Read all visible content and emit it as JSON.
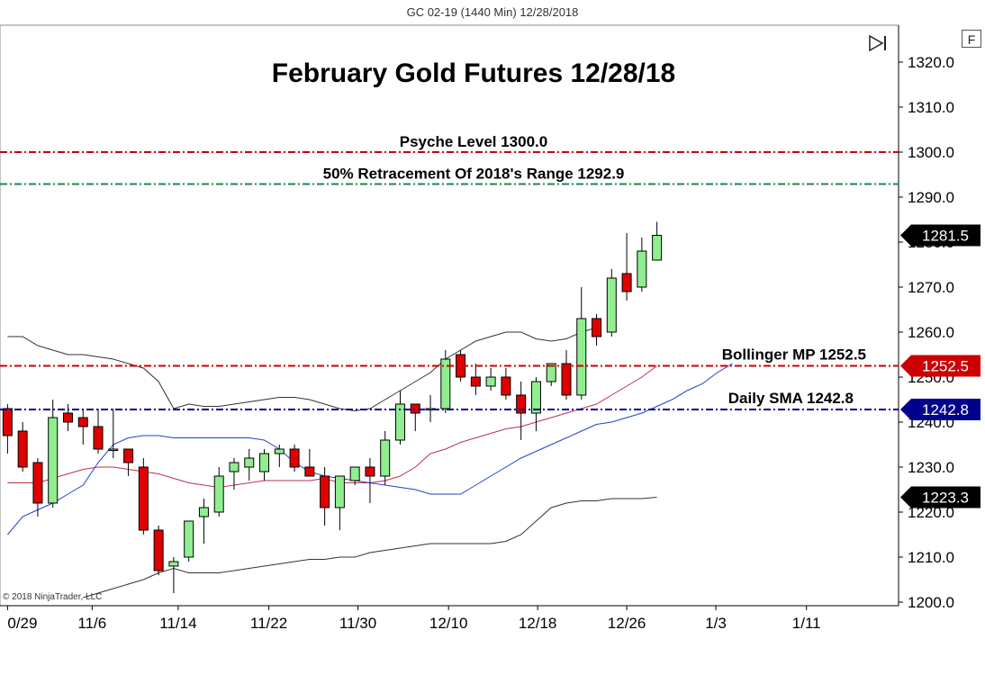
{
  "header": {
    "instrument_title": "GC 02-19 (1440 Min)  12/28/2018"
  },
  "controls": {
    "f_button": "F",
    "play_icon": "play-end-icon"
  },
  "copyright": "© 2018 NinjaTrader, LLC",
  "chart_data": {
    "type": "candlestick",
    "title": "February Gold Futures 12/28/18",
    "ylim": [
      1200,
      1320
    ],
    "yticks": [
      "1200.0",
      "1210.0",
      "1220.0",
      "1230.0",
      "1240.0",
      "1250.0",
      "1260.0",
      "1270.0",
      "1280.0",
      "1290.0",
      "1300.0",
      "1310.0",
      "1320.0"
    ],
    "xticks": [
      {
        "label": "0/29",
        "index": 0
      },
      {
        "label": "11/6",
        "index": 5.6
      },
      {
        "label": "11/14",
        "index": 11.3
      },
      {
        "label": "11/22",
        "index": 17.3
      },
      {
        "label": "11/30",
        "index": 23.2
      },
      {
        "label": "12/10",
        "index": 29.2
      },
      {
        "label": "12/18",
        "index": 35.1
      },
      {
        "label": "12/26",
        "index": 41.0
      },
      {
        "label": "1/3",
        "index": 46.9
      },
      {
        "label": "1/11",
        "index": 52.9
      }
    ],
    "x_range": [
      -0.5,
      59
    ],
    "candles": [
      {
        "o": 1243,
        "h": 1244,
        "l": 1233,
        "c": 1237
      },
      {
        "o": 1238,
        "h": 1240,
        "l": 1229,
        "c": 1230
      },
      {
        "o": 1231,
        "h": 1232,
        "l": 1219,
        "c": 1222
      },
      {
        "o": 1222,
        "h": 1245,
        "l": 1221,
        "c": 1241
      },
      {
        "o": 1242,
        "h": 1244,
        "l": 1238,
        "c": 1240
      },
      {
        "o": 1241,
        "h": 1243,
        "l": 1235,
        "c": 1239
      },
      {
        "o": 1239,
        "h": 1243,
        "l": 1233,
        "c": 1234
      },
      {
        "o": 1234,
        "h": 1243,
        "l": 1232,
        "c": 1234
      },
      {
        "o": 1234,
        "h": 1233,
        "l": 1228,
        "c": 1231
      },
      {
        "o": 1230,
        "h": 1232,
        "l": 1215,
        "c": 1216
      },
      {
        "o": 1216,
        "h": 1217,
        "l": 1206,
        "c": 1207
      },
      {
        "o": 1208,
        "h": 1210,
        "l": 1202,
        "c": 1209
      },
      {
        "o": 1210,
        "h": 1218,
        "l": 1209,
        "c": 1218
      },
      {
        "o": 1219,
        "h": 1223,
        "l": 1213,
        "c": 1221
      },
      {
        "o": 1220,
        "h": 1230,
        "l": 1219,
        "c": 1228
      },
      {
        "o": 1229,
        "h": 1232,
        "l": 1225,
        "c": 1231
      },
      {
        "o": 1230,
        "h": 1234,
        "l": 1227,
        "c": 1232
      },
      {
        "o": 1229,
        "h": 1234,
        "l": 1227,
        "c": 1233
      },
      {
        "o": 1233,
        "h": 1235,
        "l": 1230,
        "c": 1234
      },
      {
        "o": 1234,
        "h": 1235,
        "l": 1229,
        "c": 1230
      },
      {
        "o": 1230,
        "h": 1234,
        "l": 1229,
        "c": 1228
      },
      {
        "o": 1228,
        "h": 1230,
        "l": 1217,
        "c": 1221
      },
      {
        "o": 1221,
        "h": 1228,
        "l": 1216,
        "c": 1228
      },
      {
        "o": 1227,
        "h": 1230,
        "l": 1226,
        "c": 1230
      },
      {
        "o": 1230,
        "h": 1232,
        "l": 1222,
        "c": 1228
      },
      {
        "o": 1228,
        "h": 1238,
        "l": 1226,
        "c": 1236
      },
      {
        "o": 1236,
        "h": 1247,
        "l": 1235,
        "c": 1244
      },
      {
        "o": 1244,
        "h": 1244,
        "l": 1238,
        "c": 1242
      },
      {
        "o": 1243,
        "h": 1246,
        "l": 1240,
        "c": 1243
      },
      {
        "o": 1243,
        "h": 1256,
        "l": 1242,
        "c": 1254
      },
      {
        "o": 1255,
        "h": 1256,
        "l": 1249,
        "c": 1250
      },
      {
        "o": 1250,
        "h": 1253,
        "l": 1246,
        "c": 1248
      },
      {
        "o": 1248,
        "h": 1252,
        "l": 1247,
        "c": 1250
      },
      {
        "o": 1250,
        "h": 1252,
        "l": 1245,
        "c": 1246
      },
      {
        "o": 1246,
        "h": 1249,
        "l": 1236,
        "c": 1242
      },
      {
        "o": 1242,
        "h": 1250,
        "l": 1238,
        "c": 1249
      },
      {
        "o": 1249,
        "h": 1253,
        "l": 1248,
        "c": 1253
      },
      {
        "o": 1253,
        "h": 1256,
        "l": 1245,
        "c": 1246
      },
      {
        "o": 1246,
        "h": 1270,
        "l": 1245,
        "c": 1263
      },
      {
        "o": 1263,
        "h": 1264,
        "l": 1257,
        "c": 1259
      },
      {
        "o": 1260,
        "h": 1274,
        "l": 1259,
        "c": 1272
      },
      {
        "o": 1273,
        "h": 1282,
        "l": 1267,
        "c": 1269
      },
      {
        "o": 1270,
        "h": 1281,
        "l": 1269,
        "c": 1278
      },
      {
        "o": 1276,
        "h": 1284.5,
        "l": 1276,
        "c": 1281.5
      }
    ],
    "bollinger_upper": [
      [
        0,
        1259
      ],
      [
        1,
        1259
      ],
      [
        2,
        1257
      ],
      [
        3,
        1256
      ],
      [
        4,
        1255
      ],
      [
        5,
        1255
      ],
      [
        6,
        1254.5
      ],
      [
        7,
        1254
      ],
      [
        8,
        1253
      ],
      [
        9,
        1252
      ],
      [
        10,
        1249
      ],
      [
        11,
        1243
      ],
      [
        12,
        1244
      ],
      [
        13,
        1243.5
      ],
      [
        14,
        1243.5
      ],
      [
        15,
        1244
      ],
      [
        16,
        1244.5
      ],
      [
        17,
        1245
      ],
      [
        18,
        1245.5
      ],
      [
        19,
        1245.5
      ],
      [
        20,
        1245
      ],
      [
        21,
        1244
      ],
      [
        22,
        1243
      ],
      [
        23,
        1242.5
      ],
      [
        24,
        1243
      ],
      [
        25,
        1245
      ],
      [
        26,
        1247
      ],
      [
        27,
        1249
      ],
      [
        28,
        1251
      ],
      [
        29,
        1254
      ],
      [
        30,
        1256
      ],
      [
        31,
        1258
      ],
      [
        32,
        1259
      ],
      [
        33,
        1260
      ],
      [
        34,
        1260
      ],
      [
        35,
        1258.5
      ],
      [
        36,
        1258
      ],
      [
        37,
        1258.5
      ],
      [
        38,
        1260
      ],
      [
        39,
        1261
      ]
    ],
    "bollinger_middle": [
      [
        0,
        1226.5
      ],
      [
        1,
        1226.5
      ],
      [
        2,
        1226.5
      ],
      [
        3,
        1227.5
      ],
      [
        4,
        1228.5
      ],
      [
        5,
        1229.5
      ],
      [
        6,
        1230
      ],
      [
        7,
        1230
      ],
      [
        8,
        1229.5
      ],
      [
        9,
        1229
      ],
      [
        10,
        1228.5
      ],
      [
        11,
        1227.5
      ],
      [
        12,
        1226.5
      ],
      [
        13,
        1226
      ],
      [
        14,
        1225.5
      ],
      [
        15,
        1226
      ],
      [
        16,
        1226.5
      ],
      [
        17,
        1227
      ],
      [
        18,
        1227
      ],
      [
        19,
        1227
      ],
      [
        20,
        1227
      ],
      [
        21,
        1227.5
      ],
      [
        22,
        1226.5
      ],
      [
        23,
        1226.5
      ],
      [
        24,
        1226.5
      ],
      [
        25,
        1227
      ],
      [
        26,
        1228
      ],
      [
        27,
        1230
      ],
      [
        28,
        1233
      ],
      [
        29,
        1234
      ],
      [
        30,
        1235.5
      ],
      [
        31,
        1236.5
      ],
      [
        32,
        1237.5
      ],
      [
        33,
        1238.5
      ],
      [
        34,
        1239
      ],
      [
        35,
        1240
      ],
      [
        36,
        1241
      ],
      [
        37,
        1242
      ],
      [
        38,
        1243
      ],
      [
        39,
        1244
      ],
      [
        40,
        1246
      ],
      [
        41,
        1248
      ],
      [
        42,
        1250
      ],
      [
        43,
        1252.5
      ]
    ],
    "bollinger_lower": [
      [
        5,
        1201
      ],
      [
        7,
        1203
      ],
      [
        8,
        1204
      ],
      [
        9,
        1205
      ],
      [
        10,
        1206.5
      ],
      [
        11,
        1207.5
      ],
      [
        12,
        1206.5
      ],
      [
        14,
        1206.5
      ],
      [
        15,
        1207
      ],
      [
        16,
        1207.5
      ],
      [
        17,
        1208
      ],
      [
        18,
        1208.5
      ],
      [
        19,
        1209
      ],
      [
        20,
        1209.5
      ],
      [
        21,
        1209.5
      ],
      [
        22,
        1210
      ],
      [
        23,
        1210
      ],
      [
        24,
        1211
      ],
      [
        25,
        1211.5
      ],
      [
        26,
        1212
      ],
      [
        27,
        1212.5
      ],
      [
        28,
        1213
      ],
      [
        29,
        1213
      ],
      [
        30,
        1213
      ],
      [
        31,
        1213
      ],
      [
        32,
        1213
      ],
      [
        33,
        1213.5
      ],
      [
        34,
        1215
      ],
      [
        35,
        1218
      ],
      [
        36,
        1221
      ],
      [
        37,
        1222
      ],
      [
        38,
        1222.5
      ],
      [
        39,
        1222.5
      ],
      [
        40,
        1223
      ],
      [
        41,
        1223
      ],
      [
        42,
        1223
      ],
      [
        43,
        1223.3
      ]
    ],
    "daily_sma": [
      [
        0,
        1215
      ],
      [
        1,
        1219
      ],
      [
        2,
        1220.5
      ],
      [
        3,
        1222
      ],
      [
        4,
        1224
      ],
      [
        5,
        1226
      ],
      [
        6,
        1231
      ],
      [
        7,
        1235
      ],
      [
        8,
        1236.5
      ],
      [
        9,
        1237
      ],
      [
        10,
        1237
      ],
      [
        11,
        1236.5
      ],
      [
        12,
        1236.5
      ],
      [
        13,
        1236.5
      ],
      [
        14,
        1236.5
      ],
      [
        15,
        1236.5
      ],
      [
        16,
        1236.5
      ],
      [
        17,
        1236
      ],
      [
        18,
        1234
      ],
      [
        19,
        1231
      ],
      [
        20,
        1229
      ],
      [
        21,
        1228
      ],
      [
        22,
        1227.5
      ],
      [
        23,
        1227
      ],
      [
        24,
        1226.5
      ],
      [
        25,
        1226
      ],
      [
        26,
        1225.5
      ],
      [
        27,
        1225
      ],
      [
        28,
        1224
      ],
      [
        29,
        1224
      ],
      [
        30,
        1224
      ],
      [
        31,
        1226
      ],
      [
        32,
        1228
      ],
      [
        33,
        1230
      ],
      [
        34,
        1232
      ],
      [
        35,
        1233.5
      ],
      [
        36,
        1235
      ],
      [
        37,
        1236.5
      ],
      [
        38,
        1238
      ],
      [
        39,
        1239.5
      ],
      [
        40,
        1240
      ],
      [
        41,
        1241
      ],
      [
        42,
        1242
      ],
      [
        43,
        1243.5
      ],
      [
        44,
        1245
      ],
      [
        45,
        1247
      ],
      [
        46,
        1248.5
      ],
      [
        47,
        1251
      ],
      [
        48,
        1253
      ]
    ],
    "horizontal_lines": [
      {
        "label": "Psyche Level 1300.0",
        "value": 1300.0,
        "color": "#cc0000",
        "style": "dashdot"
      },
      {
        "label": "50% Retracement Of 2018's Range 1292.9",
        "value": 1292.9,
        "color": "#1a8a4a",
        "style": "dashdot"
      },
      {
        "label": "Bollinger MP 1252.5",
        "value": 1252.5,
        "color": "#cc0000",
        "style": "dashdot"
      },
      {
        "label": "Daily SMA 1242.8",
        "value": 1242.8,
        "color": "#00008b",
        "style": "dashdot"
      }
    ],
    "price_markers": [
      {
        "label": "1281.5",
        "value": 1281.5,
        "color": "#000000"
      },
      {
        "label": "1252.5",
        "value": 1252.5,
        "color": "#cc0000"
      },
      {
        "label": "1242.8",
        "value": 1242.8,
        "color": "#00008b"
      },
      {
        "label": "1223.3",
        "value": 1223.3,
        "color": "#000000"
      }
    ],
    "colors": {
      "up_candle": "#90ee90",
      "down_candle": "#e00000",
      "bollinger_band": "#333333",
      "bollinger_mid": "#c0304a",
      "sma": "#2040d0"
    }
  }
}
